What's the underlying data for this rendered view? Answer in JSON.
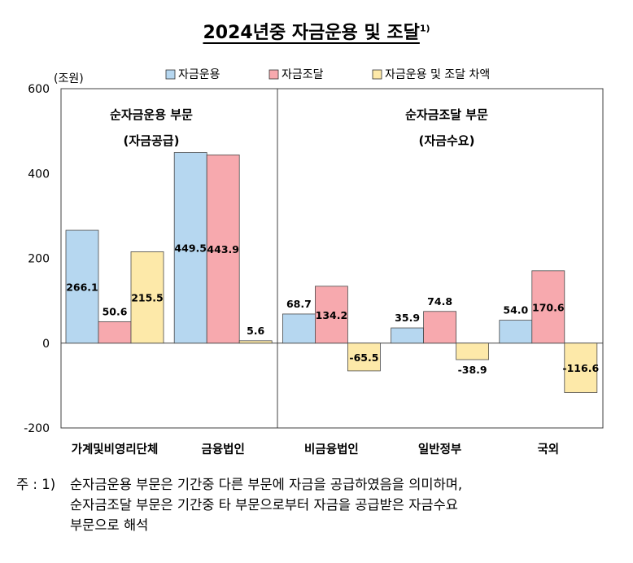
{
  "title": "2024년중 자금운용 및 조달",
  "title_mark": "1)",
  "footnote": {
    "lead": "주 : 1)",
    "lines": [
      "순자금운용 부문은 기간중 다른 부문에 자금을 공급하였음을 의미하며,",
      "순자금조달 부문은 기간중 타 부문으로부터 자금을 공급받은 자금수요",
      "부문으로 해석"
    ]
  },
  "chart_data": {
    "type": "bar",
    "unit_label": "(조원)",
    "ylim": [
      -200,
      600
    ],
    "yticks": [
      "600",
      "400",
      "200",
      "0",
      "-200"
    ],
    "ytick_values": [
      600,
      400,
      200,
      0,
      -200
    ],
    "categories": [
      "가계및비영리단체",
      "금융법인",
      "비금융법인",
      "일반정부",
      "국외"
    ],
    "series": [
      {
        "name": "자금운용",
        "color": "#b6d7f0",
        "values": [
          266.1,
          449.5,
          68.7,
          35.9,
          54.0
        ],
        "labels": [
          "266.1",
          "449.5",
          "68.7",
          "35.9",
          "54.0"
        ]
      },
      {
        "name": "자금조달",
        "color": "#f7a9ae",
        "values": [
          50.6,
          443.9,
          134.2,
          74.8,
          170.6
        ],
        "labels": [
          "50.6",
          "443.9",
          "134.2",
          "74.8",
          "170.6"
        ]
      },
      {
        "name": "자금운용 및 조달 차액",
        "color": "#fde9a9",
        "values": [
          215.5,
          5.6,
          -65.5,
          -38.9,
          -116.6
        ],
        "labels": [
          "215.5",
          "5.6",
          "-65.5",
          "-38.9",
          "-116.6"
        ]
      }
    ],
    "missing_bars": [
      [
        1,
        0
      ]
    ],
    "sections": [
      {
        "line1": "순자금운용 부문",
        "line2": "(자금공급)"
      },
      {
        "line1": "순자금조달 부문",
        "line2": "(자금수요)"
      }
    ],
    "grid": false,
    "legend_position": "top"
  }
}
